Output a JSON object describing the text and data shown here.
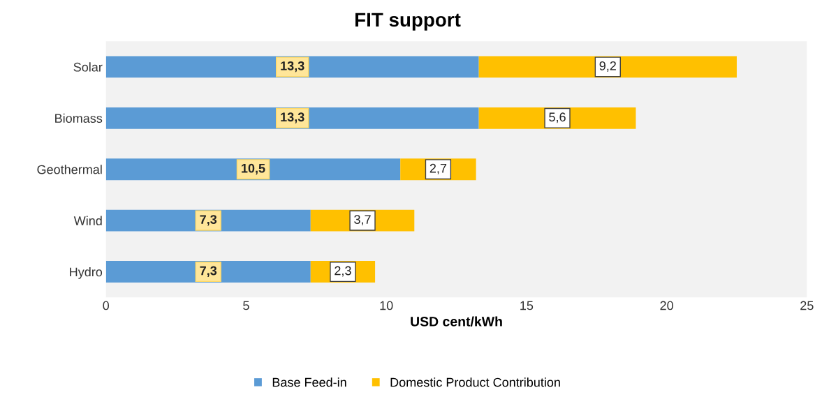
{
  "chart_data": {
    "type": "bar",
    "orientation": "horizontal",
    "stacked": true,
    "title": "FIT support",
    "xlabel": "USD cent/kWh",
    "categories": [
      "Solar",
      "Biomass",
      "Geothermal",
      "Wind",
      "Hydro"
    ],
    "series": [
      {
        "name": "Base Feed-in",
        "color": "#5b9bd5",
        "values": [
          13.3,
          13.3,
          10.5,
          7.3,
          7.3
        ],
        "value_labels": [
          "13,3",
          "13,3",
          "10,5",
          "7,3",
          "7,3"
        ]
      },
      {
        "name": "Domestic Product Contribution",
        "color": "#ffc000",
        "values": [
          9.2,
          5.6,
          2.7,
          3.7,
          2.3
        ],
        "value_labels": [
          "9,2",
          "5,6",
          "2,7",
          "3,7",
          "2,3"
        ]
      }
    ],
    "xlim": [
      0,
      25
    ],
    "xticks": [
      0,
      5,
      10,
      15,
      20,
      25
    ],
    "grid": false,
    "legend": "bottom"
  }
}
